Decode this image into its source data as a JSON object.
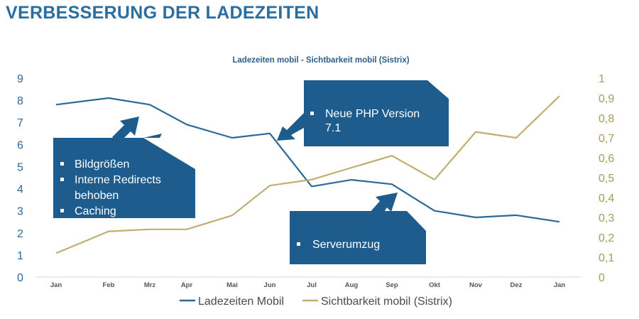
{
  "slide": {
    "title": "VERBESSERUNG DER LADEZEITEN"
  },
  "colors": {
    "title": "#2a6ea0",
    "series_load": "#2b6a98",
    "series_visibility": "#bfae6f",
    "callout_fill": "#1f5c8e",
    "left_axis_labels": "#2b6a98",
    "right_axis_labels": "#a89a5e"
  },
  "chart_data": {
    "type": "line",
    "title": "Ladezeiten mobil - Sichtbarkeit mobil (Sistrix)",
    "categories": [
      "Jan",
      "Feb",
      "Mrz",
      "Apr",
      "Mai",
      "Jun",
      "Jul",
      "Aug",
      "Sep",
      "Okt",
      "Nov",
      "Dez",
      "Jan"
    ],
    "y_left": {
      "min": 0,
      "max": 9,
      "ticks": [
        "0",
        "1",
        "2",
        "3",
        "4",
        "5",
        "6",
        "7",
        "8",
        "9"
      ]
    },
    "y_right": {
      "min": 0,
      "max": 1,
      "ticks": [
        "0",
        "0,1",
        "0,2",
        "0,3",
        "0,4",
        "0,5",
        "0,6",
        "0,7",
        "0,8",
        "0,9",
        "1"
      ]
    },
    "series": [
      {
        "name": "Ladezeiten Mobil",
        "axis": "left",
        "values": [
          7.8,
          8.1,
          7.8,
          6.9,
          6.3,
          6.5,
          4.1,
          4.4,
          4.2,
          3.0,
          2.7,
          2.8,
          2.5
        ]
      },
      {
        "name": "Sichtbarkeit mobil (Sistrix)",
        "axis": "right",
        "values": [
          0.12,
          0.23,
          0.24,
          0.24,
          0.31,
          0.46,
          0.49,
          0.55,
          0.61,
          0.49,
          0.73,
          0.7,
          0.91
        ]
      }
    ],
    "legend": "bottom",
    "grid": false,
    "annotations": [
      {
        "id": "bilder",
        "lines": [
          "Bildgrößen",
          "Interne Redirects",
          "behoben",
          "Caching"
        ],
        "bullets": [
          0,
          1,
          3
        ]
      },
      {
        "id": "php",
        "lines": [
          "Neue PHP Version",
          "7.1"
        ],
        "bullets": [
          0
        ]
      },
      {
        "id": "server",
        "lines": [
          "Serverumzug"
        ],
        "bullets": [
          0
        ]
      }
    ]
  }
}
